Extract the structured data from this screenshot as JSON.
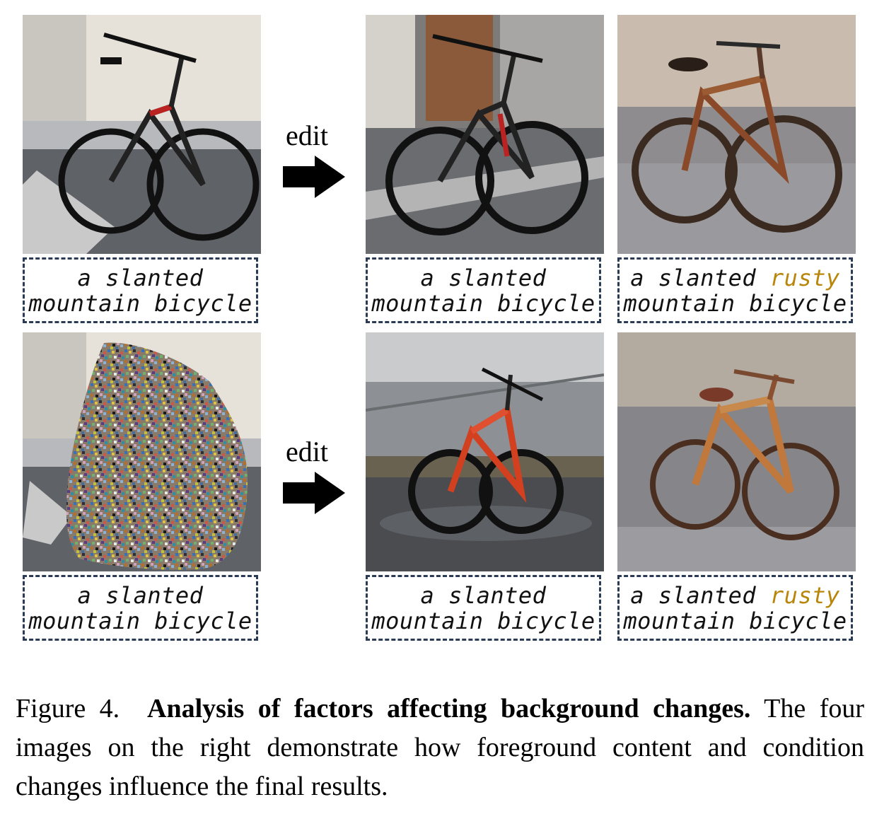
{
  "rows": [
    {
      "edit_label": "edit",
      "source_caption": {
        "line1": "a slanted",
        "line2": "mountain bicycle"
      },
      "result1_caption": {
        "line1": "a slanted",
        "line2": "mountain bicycle"
      },
      "result2_caption": {
        "line1_pre": "a slanted ",
        "line1_highlight": "rusty",
        "line2": "mountain bicycle"
      }
    },
    {
      "edit_label": "edit",
      "source_caption": {
        "line1": "a slanted",
        "line2": "mountain bicycle"
      },
      "result1_caption": {
        "line1": "a slanted",
        "line2": "mountain bicycle"
      },
      "result2_caption": {
        "line1_pre": "a slanted ",
        "line1_highlight": "rusty",
        "line2": "mountain bicycle"
      }
    }
  ],
  "caption": {
    "label": "Figure 4.",
    "title": "Analysis of factors affecting background changes.",
    "body": "The four images on the right demonstrate how foreground content and condition changes influence the final results."
  },
  "colors": {
    "highlight": "#b8860b",
    "box_border": "#2b3a55"
  }
}
